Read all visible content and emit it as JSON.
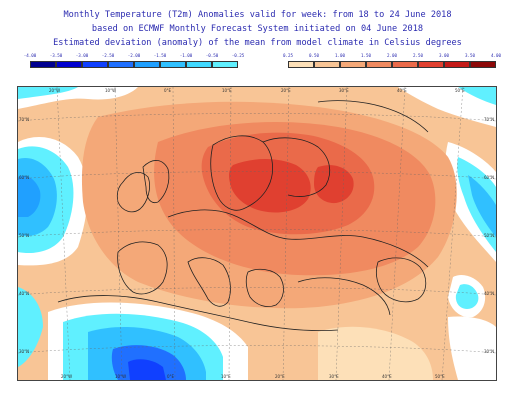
{
  "header": {
    "line1": "Monthly Temperature (T2m) Anomalies valid for week: from 18 to 24 June 2018",
    "line2": "based on ECMWF Monthly Forecast System initiated on 04 June 2018",
    "line3": "Estimated deviation (anomaly) of the mean from model climate in Celsius degrees"
  },
  "legend": {
    "negative": {
      "labels": [
        "-4.00",
        "-3.50",
        "-3.00",
        "-2.50",
        "-2.00",
        "-1.50",
        "-1.00",
        "-0.50",
        "-0.25"
      ],
      "colors": [
        "#000090",
        "#0000d0",
        "#1040ff",
        "#2070ff",
        "#20a0ff",
        "#30c0ff",
        "#40d8ff",
        "#60f0ff"
      ]
    },
    "positive": {
      "labels": [
        "0.25",
        "0.50",
        "1.00",
        "1.50",
        "2.00",
        "2.50",
        "3.00",
        "3.50",
        "4.00"
      ],
      "colors": [
        "#fde0b8",
        "#f8c596",
        "#f4a878",
        "#f08a60",
        "#ea6a4a",
        "#e04030",
        "#c41a18",
        "#8c0808"
      ]
    }
  },
  "map": {
    "top_lon_labels": [
      "20°W",
      "10°W",
      "0°E",
      "10°E",
      "20°E",
      "30°E",
      "40°E",
      "50°E"
    ],
    "bottom_lon_labels": [
      "20°W",
      "10°W",
      "0°E",
      "10°E",
      "20°E",
      "30°E",
      "40°E",
      "50°E"
    ],
    "left_lat_labels": [
      "70°N",
      "60°N",
      "50°N",
      "40°N",
      "30°N"
    ],
    "right_lat_labels": [
      "70°N",
      "60°N",
      "50°N",
      "40°N",
      "30°N"
    ]
  }
}
